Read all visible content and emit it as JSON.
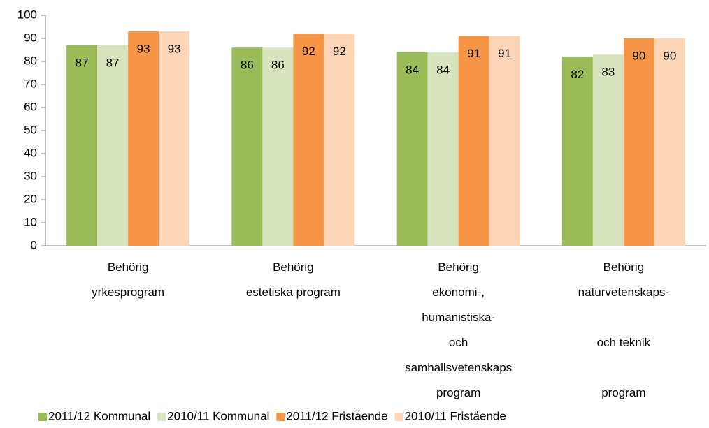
{
  "chart_data": {
    "type": "bar",
    "categories": [
      "Behörig\nyrkesprogram",
      "Behörig\nestetiska program",
      "Behörig\nekonomi-,\nhumanistiska-\noch\nsamhällsvetenskaps\nprogram",
      "Behörig\nnaturvetenskaps-\n\noch teknik\n\nprogram"
    ],
    "series": [
      {
        "name": "2011/12 Kommunal",
        "color": "#9bbb59",
        "values": [
          87,
          86,
          84,
          82
        ]
      },
      {
        "name": "2010/11 Kommunal",
        "color": "#d7e4bd",
        "values": [
          87,
          86,
          84,
          83
        ]
      },
      {
        "name": "2011/12 Fristående",
        "color": "#f79646",
        "values": [
          93,
          92,
          91,
          90
        ]
      },
      {
        "name": "2010/11 Fristående",
        "color": "#fbd5b5",
        "values": [
          93,
          92,
          91,
          90
        ]
      }
    ],
    "ylim": [
      0,
      100
    ],
    "yticks": [
      0,
      10,
      20,
      30,
      40,
      50,
      60,
      70,
      80,
      90,
      100
    ],
    "grid": false,
    "legend": "bottom"
  }
}
